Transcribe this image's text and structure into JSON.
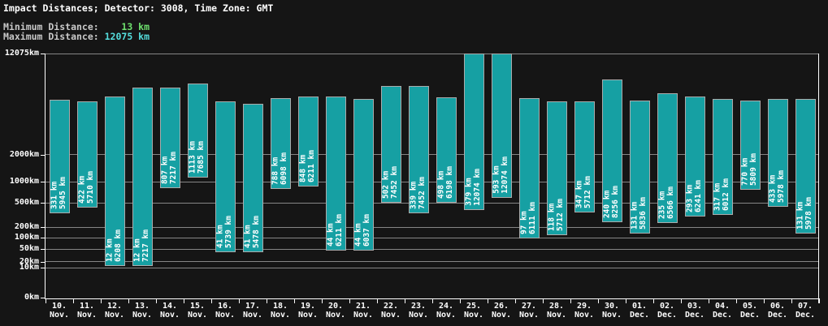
{
  "header": {
    "title": "Impact Distances; Detector: 3008, Time Zone: GMT",
    "minimum": {
      "label": "Minimum Distance:",
      "value_display": "    13 km"
    },
    "maximum": {
      "label": "Maximum Distance:",
      "value_display": " 12075 km"
    }
  },
  "colors": {
    "background": "#151515",
    "bar_fill": "#16A0A3",
    "bar_border": "#ABABAB",
    "grid_line": "#868686",
    "axis_line": "#ffffff",
    "text": "#ffffff",
    "stat_label_gray": "#c9c9c9",
    "min_value_green": "#6FE26F",
    "max_value_cyan": "#55DEDE"
  },
  "chart_data": {
    "type": "bar",
    "subtype": "floating-range-bars",
    "title": "Impact Distances; Detector: 3008, Time Zone: GMT",
    "unit": "km",
    "overall_min_km": 13,
    "overall_max_km": 12075,
    "grid": "horizontal-on",
    "legend": "none",
    "y_axis": {
      "scale": "nonlinear-log-like",
      "range_km": [
        0,
        12075
      ],
      "ticks": [
        {
          "label": "12075km",
          "value": 12075
        },
        {
          "label": "2000km",
          "value": 2000
        },
        {
          "label": "1000km",
          "value": 1000
        },
        {
          "label": "500km",
          "value": 500
        },
        {
          "label": "200km",
          "value": 200
        },
        {
          "label": "100km",
          "value": 100
        },
        {
          "label": "50km",
          "value": 50
        },
        {
          "label": "20km",
          "value": 20
        },
        {
          "label": "10km",
          "value": 10
        },
        {
          "label": "0km",
          "value": 0
        }
      ]
    },
    "bars": [
      {
        "date": "10. Nov.",
        "min_km": 331,
        "max_km": 5945
      },
      {
        "date": "11. Nov.",
        "min_km": 422,
        "max_km": 5710
      },
      {
        "date": "12. Nov.",
        "min_km": 12,
        "max_km": 6208
      },
      {
        "date": "13. Nov.",
        "min_km": 12,
        "max_km": 7217
      },
      {
        "date": "14. Nov.",
        "min_km": 807,
        "max_km": 7217
      },
      {
        "date": "15. Nov.",
        "min_km": 1113,
        "max_km": 7685
      },
      {
        "date": "16. Nov.",
        "min_km": 41,
        "max_km": 5739
      },
      {
        "date": "17. Nov.",
        "min_km": 41,
        "max_km": 5478
      },
      {
        "date": "18. Nov.",
        "min_km": 788,
        "max_km": 6098
      },
      {
        "date": "19. Nov.",
        "min_km": 848,
        "max_km": 6211
      },
      {
        "date": "20. Nov.",
        "min_km": 44,
        "max_km": 6211
      },
      {
        "date": "21. Nov.",
        "min_km": 44,
        "max_km": 6037
      },
      {
        "date": "22. Nov.",
        "min_km": 502,
        "max_km": 7452
      },
      {
        "date": "23. Nov.",
        "min_km": 339,
        "max_km": 7452
      },
      {
        "date": "24. Nov.",
        "min_km": 498,
        "max_km": 6198
      },
      {
        "date": "25. Nov.",
        "min_km": 379,
        "max_km": 12074
      },
      {
        "date": "26. Nov.",
        "min_km": 593,
        "max_km": 12074
      },
      {
        "date": "27. Nov.",
        "min_km": 97,
        "max_km": 6111
      },
      {
        "date": "28. Nov.",
        "min_km": 118,
        "max_km": 5712
      },
      {
        "date": "29. Nov.",
        "min_km": 347,
        "max_km": 5712
      },
      {
        "date": "30. Nov.",
        "min_km": 240,
        "max_km": 8256
      },
      {
        "date": "01. Dec.",
        "min_km": 131,
        "max_km": 5836
      },
      {
        "date": "02. Dec.",
        "min_km": 235,
        "max_km": 6566
      },
      {
        "date": "03. Dec.",
        "min_km": 293,
        "max_km": 6241
      },
      {
        "date": "04. Dec.",
        "min_km": 317,
        "max_km": 6012
      },
      {
        "date": "05. Dec.",
        "min_km": 770,
        "max_km": 5809
      },
      {
        "date": "06. Dec.",
        "min_km": 433,
        "max_km": 5978
      },
      {
        "date": "07. Dec.",
        "min_km": 131,
        "max_km": 5978
      }
    ]
  }
}
